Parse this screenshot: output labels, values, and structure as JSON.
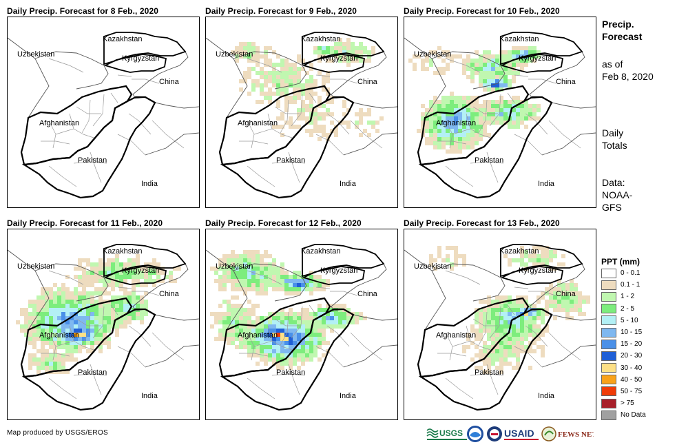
{
  "panels": [
    {
      "title": "Daily Precip. Forecast for 8 Feb., 2020",
      "intensity": 0
    },
    {
      "title": "Daily Precip. Forecast for 9 Feb., 2020",
      "intensity": 1
    },
    {
      "title": "Daily Precip. Forecast for 10 Feb., 2020",
      "intensity": 2
    },
    {
      "title": "Daily Precip. Forecast for 11 Feb., 2020",
      "intensity": 3
    },
    {
      "title": "Daily Precip. Forecast for 12 Feb., 2020",
      "intensity": 4
    },
    {
      "title": "Daily Precip. Forecast for 13 Feb., 2020",
      "intensity": 5
    }
  ],
  "country_labels": {
    "kazakhstan": "Kazakhstan",
    "uzbekistan": "Uzbekistan",
    "kyrgyzstan": "Kyrgyzstan",
    "china": "China",
    "afghanistan": "Afghanistan",
    "pakistan": "Pakistan",
    "india": "India"
  },
  "side_text": {
    "heading_line1": "Precip.",
    "heading_line2": "Forecast",
    "asof_line1": "as of",
    "asof_line2": "Feb 8, 2020",
    "totals_line1": "Daily",
    "totals_line2": "Totals",
    "data_line1": "Data:",
    "data_line2": "NOAA-",
    "data_line3": "GFS"
  },
  "legend": {
    "title": "PPT (mm)",
    "items": [
      {
        "label": "0 - 0.1",
        "color": "#ffffff"
      },
      {
        "label": "0.1 - 1",
        "color": "#eedcbf"
      },
      {
        "label": "1 - 2",
        "color": "#c0f7b0"
      },
      {
        "label": "2 - 5",
        "color": "#7ded7d"
      },
      {
        "label": "5 - 10",
        "color": "#b3f0f5"
      },
      {
        "label": "10 - 15",
        "color": "#7fb8f0"
      },
      {
        "label": "15 - 20",
        "color": "#4a90e8"
      },
      {
        "label": "20 - 30",
        "color": "#1f5fd6"
      },
      {
        "label": "30 - 40",
        "color": "#fde086"
      },
      {
        "label": "40 - 50",
        "color": "#f9a21a"
      },
      {
        "label": "50 - 75",
        "color": "#f03c08"
      },
      {
        "label": "> 75",
        "color": "#a8202a"
      },
      {
        "label": "No Data",
        "color": "#a0a0a0"
      }
    ]
  },
  "credit": "Map produced by USGS/EROS",
  "logos": {
    "usgs": "USGS",
    "usaid": "USAID",
    "fewsnet": "FEWS NET"
  }
}
